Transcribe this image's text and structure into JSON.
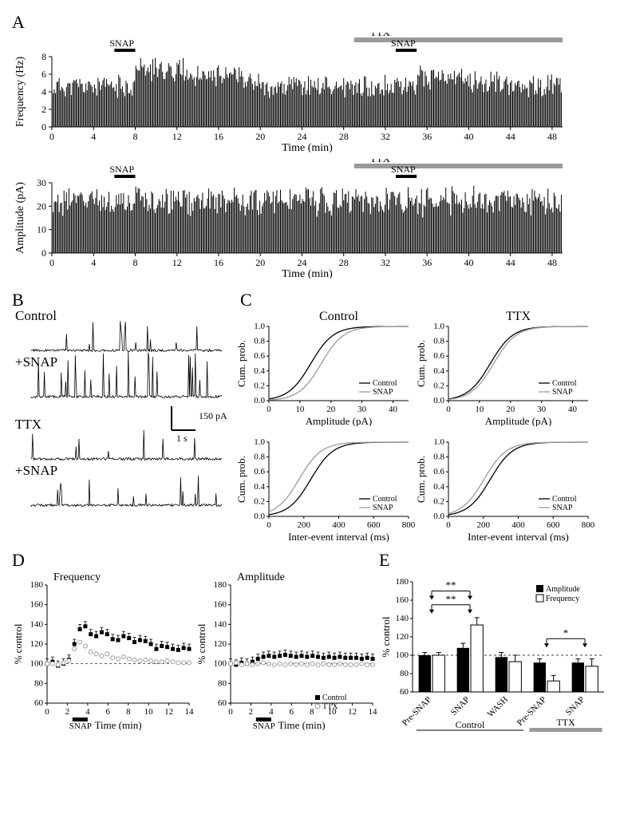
{
  "panelA": {
    "label": "A",
    "frequency_chart": {
      "ylabel": "Frequency (Hz)",
      "xlabel": "Time (min)",
      "xlim": [
        0,
        49
      ],
      "ylim": [
        0,
        8
      ],
      "xticks": [
        0,
        4,
        8,
        12,
        16,
        20,
        24,
        28,
        32,
        36,
        40,
        44,
        48
      ],
      "yticks": [
        0,
        2,
        4,
        6,
        8
      ],
      "snap1_label": "SNAP",
      "snap1_range": [
        6,
        8
      ],
      "snap2_label": "SNAP",
      "snap2_range": [
        33,
        35
      ],
      "ttx_label": "TTX",
      "ttx_range": [
        29,
        49
      ],
      "bar_color": "#000000",
      "ttx_color": "#9a9a9a"
    },
    "amplitude_chart": {
      "ylabel": "Amplitude (pA)",
      "xlabel": "Time (min)",
      "xlim": [
        0,
        49
      ],
      "ylim": [
        0,
        30
      ],
      "xticks": [
        0,
        4,
        8,
        12,
        16,
        20,
        24,
        28,
        32,
        36,
        40,
        44,
        48
      ],
      "yticks": [
        0,
        10,
        20,
        30
      ],
      "snap1_label": "SNAP",
      "snap1_range": [
        6,
        8
      ],
      "snap2_label": "SNAP",
      "snap2_range": [
        33,
        35
      ],
      "ttx_label": "TTX",
      "ttx_range": [
        29,
        49
      ],
      "bar_color": "#000000",
      "ttx_color": "#9a9a9a"
    }
  },
  "panelB": {
    "label": "B",
    "traces": [
      "Control",
      "+SNAP",
      "TTX",
      "+SNAP"
    ],
    "scale_y_label": "150 pA",
    "scale_x_label": "1 s"
  },
  "panelC": {
    "label": "C",
    "titles": [
      "Control",
      "TTX"
    ],
    "ylabel": "Cum. prob.",
    "amp_xlabel": "Amplitude (pA)",
    "iei_xlabel": "Inter-event interval (ms)",
    "amp_xlim": [
      0,
      45
    ],
    "amp_xticks": [
      0,
      10,
      20,
      30,
      40
    ],
    "iei_xlim": [
      0,
      800
    ],
    "iei_xticks": [
      0,
      200,
      400,
      600,
      800
    ],
    "ylim": [
      0,
      1.0
    ],
    "yticks": [
      0,
      0.2,
      0.4,
      0.6,
      0.8,
      1.0
    ],
    "legend": [
      "Control",
      "SNAP"
    ],
    "control_color": "#000000",
    "snap_color": "#9a9a9a"
  },
  "panelD": {
    "label": "D",
    "freq_title": "Frequency",
    "amp_title": "Amplitude",
    "ylabel": "% control",
    "xlabel": "Time (min)",
    "xlim": [
      0,
      14
    ],
    "xticks": [
      0,
      2,
      4,
      6,
      8,
      10,
      12,
      14
    ],
    "ylim": [
      60,
      180
    ],
    "yticks": [
      60,
      80,
      100,
      120,
      140,
      160,
      180
    ],
    "snap_label": "SNAP",
    "snap_range": [
      2.5,
      4
    ],
    "legend": [
      "Control",
      "TTX"
    ],
    "control_color": "#000000",
    "ttx_color": "#9a9a9a",
    "freq_control": [
      100,
      102,
      98,
      100,
      104,
      120,
      135,
      138,
      130,
      128,
      132,
      130,
      125,
      124,
      128,
      126,
      122,
      124,
      123,
      120,
      115,
      118,
      117,
      115,
      114,
      116,
      115
    ],
    "freq_ttx": [
      100,
      100,
      99,
      101,
      103,
      115,
      122,
      118,
      112,
      110,
      108,
      110,
      106,
      105,
      107,
      105,
      104,
      103,
      104,
      103,
      102,
      102,
      103,
      102,
      101,
      101,
      101
    ],
    "amp_control": [
      100,
      99,
      101,
      100,
      102,
      105,
      107,
      108,
      107,
      108,
      109,
      108,
      107,
      108,
      107,
      108,
      107,
      106,
      107,
      106,
      107,
      106,
      106,
      106,
      105,
      106,
      105
    ],
    "amp_ttx": [
      100,
      101,
      99,
      100,
      99,
      100,
      101,
      100,
      99,
      100,
      99,
      100,
      99,
      100,
      99,
      100,
      99,
      100,
      99,
      99,
      100,
      99,
      99,
      99,
      100,
      99,
      99
    ]
  },
  "panelE": {
    "label": "E",
    "ylabel": "% control",
    "ylim": [
      60,
      180
    ],
    "yticks": [
      60,
      80,
      100,
      120,
      140,
      160,
      180
    ],
    "groups": [
      "Pre-SNAP",
      "SNAP",
      "WASH",
      "Pre-SNAP",
      "SNAP"
    ],
    "amplitude": [
      100,
      108,
      98,
      92,
      92
    ],
    "amplitude_err": [
      3,
      5,
      5,
      4,
      4
    ],
    "frequency": [
      100,
      133,
      93,
      72,
      88
    ],
    "frequency_err": [
      3,
      8,
      7,
      6,
      8
    ],
    "legend": [
      "Amplitude",
      "Frequency"
    ],
    "amp_color": "#000000",
    "freq_color": "#ffffff",
    "sig_labels": [
      "**",
      "**",
      "*"
    ],
    "bottom_labels": [
      "Control",
      "TTX"
    ],
    "ttx_color": "#9a9a9a"
  }
}
